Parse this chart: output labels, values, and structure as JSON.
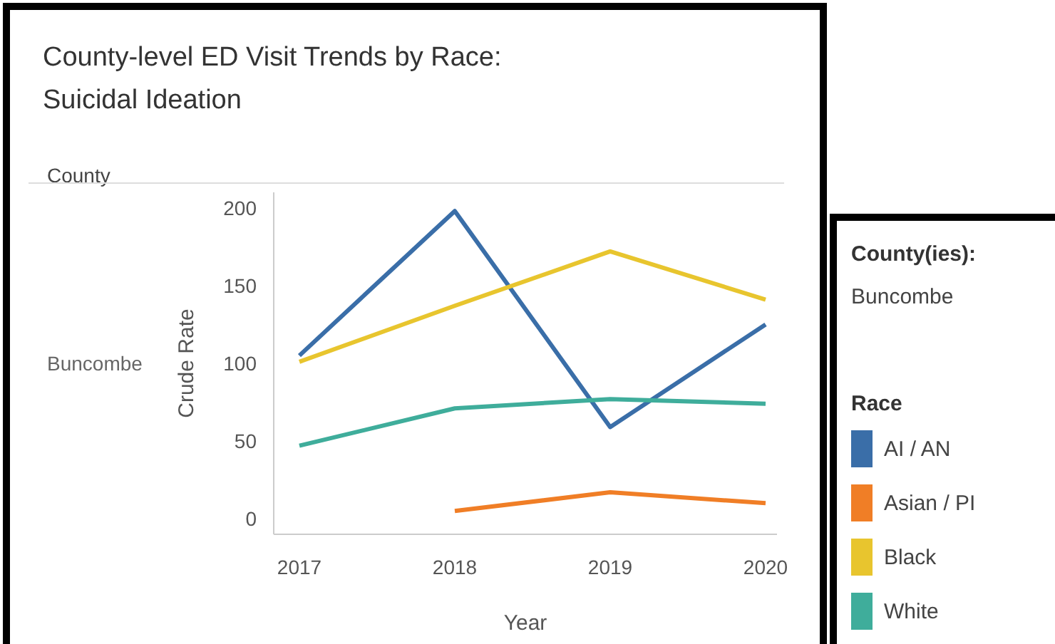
{
  "chart_data": {
    "type": "line",
    "title": "County-level ED Visit Trends by Race:\nSuicidal Ideation",
    "xlabel": "Year",
    "ylabel": "Crude Rate",
    "legend_title": "Race",
    "legend": "right",
    "categories": [
      "2017",
      "2018",
      "2019",
      "2020"
    ],
    "ylim": [
      -10,
      210
    ],
    "yticks": [
      0,
      50,
      100,
      150,
      200
    ],
    "grid": false,
    "marker": "none",
    "annotations": [
      "County",
      "Buncombe",
      "County(ies):",
      "Buncombe"
    ],
    "series": [
      {
        "name": "AI / AN",
        "color": "#3a6ea8",
        "values": [
          105,
          198,
          59,
          125
        ]
      },
      {
        "name": "Asian / PI",
        "color": "#f07e26",
        "values": [
          null,
          5,
          17,
          10
        ]
      },
      {
        "name": "Black",
        "color": "#e8c52e",
        "values": [
          101,
          137,
          172,
          141
        ]
      },
      {
        "name": "White",
        "color": "#3fad9b",
        "values": [
          47,
          71,
          77,
          74
        ]
      }
    ]
  }
}
